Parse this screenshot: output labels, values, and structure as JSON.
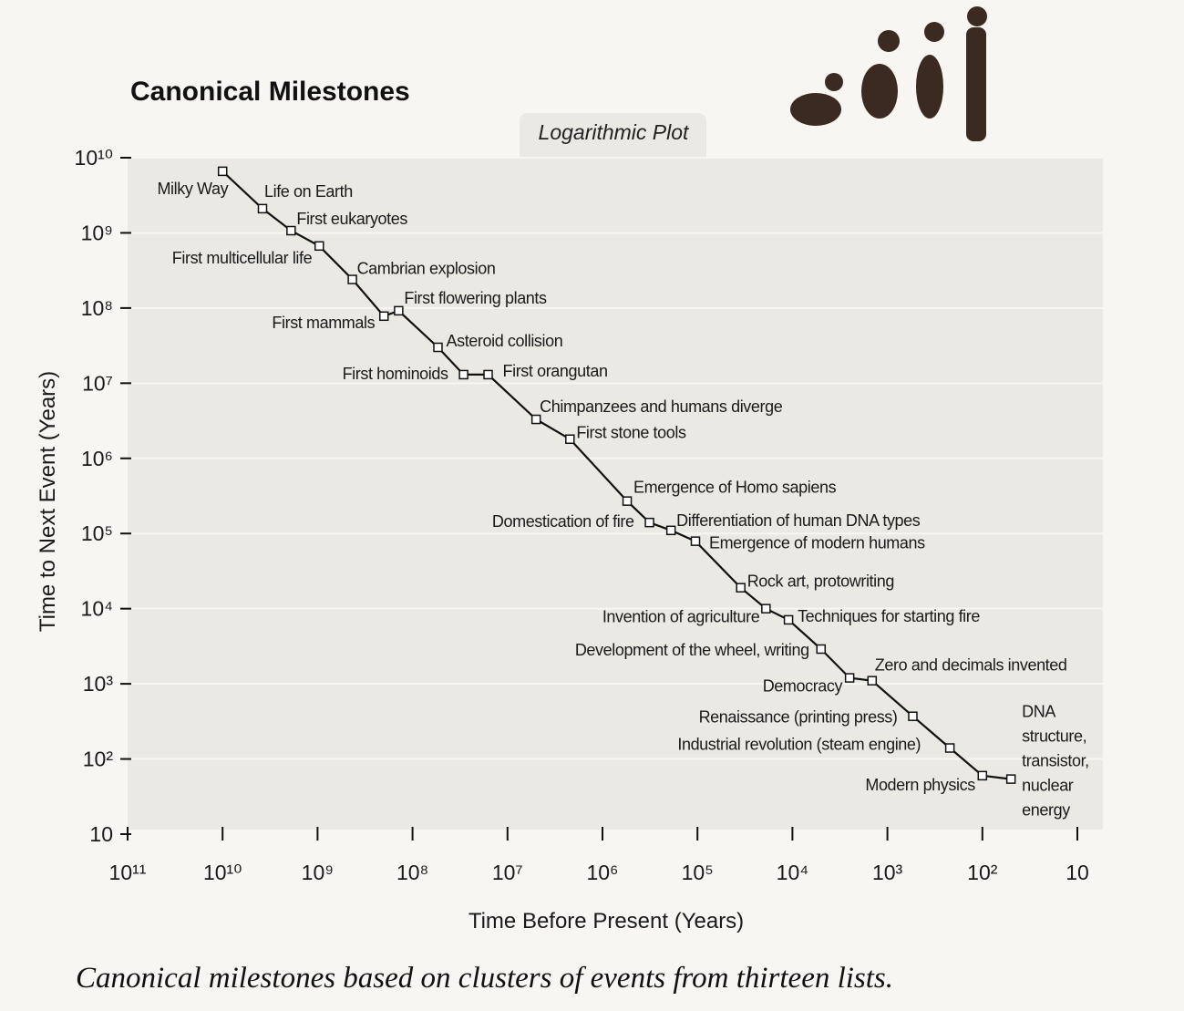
{
  "chart_data": {
    "type": "line",
    "title": "Canonical Milestones",
    "subtitle": "Logarithmic Plot",
    "x_label": "Time Before Present (Years)",
    "y_label": "Time to Next Event (Years)",
    "caption": "Canonical milestones based on clusters of events from thirteen lists.",
    "x_scale": "log",
    "y_scale": "log",
    "grid": true,
    "color": "#111111",
    "xlim": [
      100000000000,
      10
    ],
    "ylim": [
      10,
      10000000000
    ],
    "xticks": [
      {
        "value": 100000000000,
        "label": "10¹¹"
      },
      {
        "value": 10000000000,
        "label": "10¹⁰"
      },
      {
        "value": 1000000000,
        "label": "10⁹"
      },
      {
        "value": 100000000,
        "label": "10⁸"
      },
      {
        "value": 10000000,
        "label": "10⁷"
      },
      {
        "value": 1000000,
        "label": "10⁶"
      },
      {
        "value": 100000,
        "label": "10⁵"
      },
      {
        "value": 10000,
        "label": "10⁴"
      },
      {
        "value": 1000,
        "label": "10³"
      },
      {
        "value": 100,
        "label": "10²"
      },
      10
    ],
    "yticks": [
      10,
      {
        "value": 100,
        "label": "10²"
      },
      {
        "value": 1000,
        "label": "10³"
      },
      {
        "value": 10000,
        "label": "10⁴"
      },
      {
        "value": 100000,
        "label": "10⁵"
      },
      {
        "value": 1000000,
        "label": "10⁶"
      },
      {
        "value": 10000000,
        "label": "10⁷"
      },
      {
        "value": 100000000,
        "label": "10⁸"
      },
      {
        "value": 1000000000,
        "label": "10⁹"
      },
      {
        "value": 10000000000,
        "label": "10¹⁰"
      }
    ],
    "point_labels": [
      "Milky Way",
      "Life on Earth",
      "First eukaryotes",
      "First multicellular life",
      "Cambrian explosion",
      "First mammals",
      "First flowering plants",
      "Asteroid collision",
      "First hominoids",
      "First orangutan",
      "Chimpanzees and humans diverge",
      "First stone tools",
      "Emergence of Homo sapiens",
      "Domestication of fire",
      "Differentiation of human DNA types",
      "Emergence of modern humans",
      "Rock art, protowriting",
      "Invention of agriculture",
      "Techniques for starting fire",
      "Development of the wheel, writing",
      "Democracy",
      "Zero and decimals invented",
      "Renaissance (printing press)",
      "Industrial revolution (steam engine)",
      "Modern physics",
      "DNA structure, transistor, nuclear energy"
    ],
    "x": [
      10000000000,
      3800000000,
      1900000000,
      960000000,
      430000000,
      200000000,
      140000000,
      54000000,
      29000000,
      16000000,
      5000000,
      2200000,
      550000,
      320000,
      190000,
      105000,
      35000,
      19000,
      11000,
      5000,
      2500,
      1450,
      540,
      220,
      100,
      50
    ],
    "values": [
      6600000000,
      2100000000,
      1070000000,
      670000000,
      240000000,
      78000000,
      92000000,
      30000000,
      13000000,
      13000000,
      3300000,
      1800000,
      270000,
      140000,
      110000,
      79000,
      19000,
      10000,
      7100,
      2900,
      1200,
      1100,
      370,
      140,
      60,
      54
    ]
  }
}
